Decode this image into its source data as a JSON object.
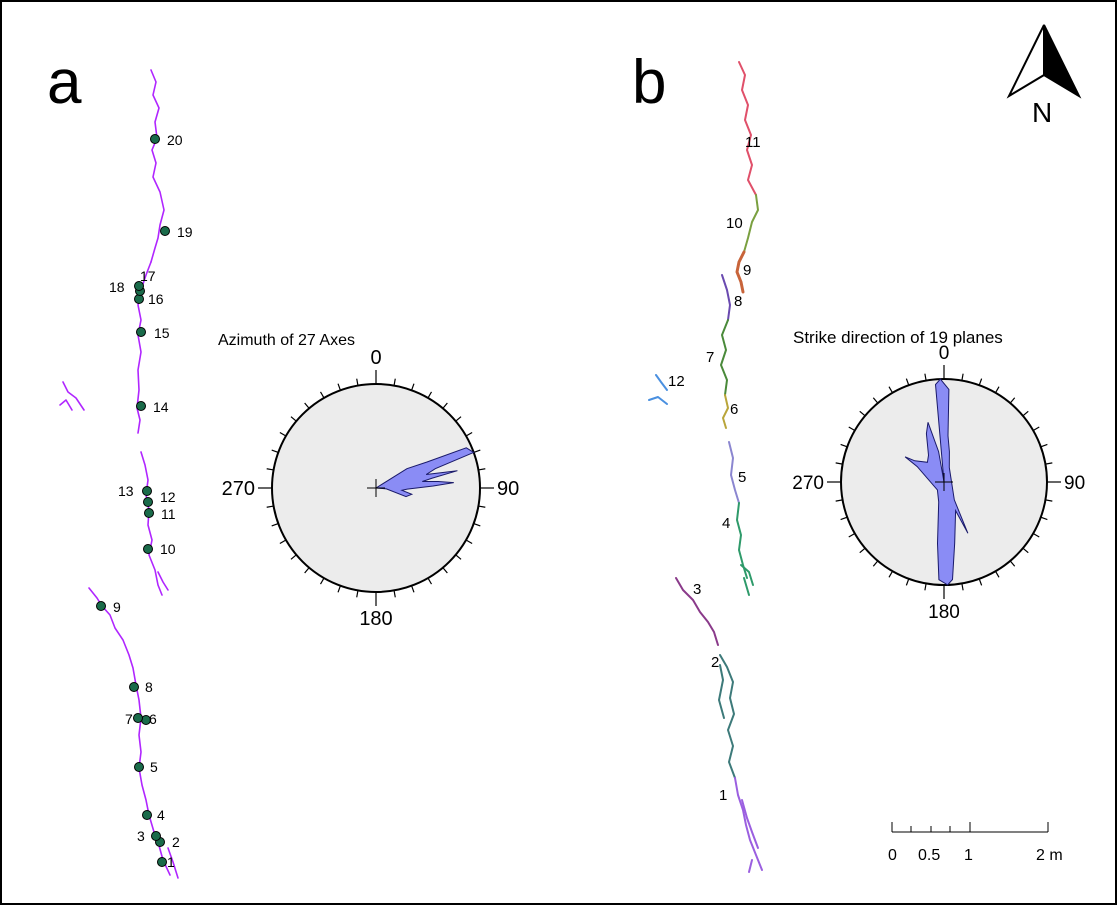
{
  "panels": {
    "a": {
      "letter": "a"
    },
    "b": {
      "letter": "b"
    }
  },
  "north_arrow": {
    "label": "N",
    "icon": "north-arrow-icon"
  },
  "rose_a": {
    "title": "Azimuth of 27 Axes",
    "labels": {
      "n": "0",
      "e": "90",
      "s": "180",
      "w": "270"
    }
  },
  "rose_b": {
    "title": "Strike direction of 19 planes",
    "labels": {
      "n": "0",
      "e": "90",
      "s": "180",
      "w": "270"
    }
  },
  "points_a": [
    "1",
    "2",
    "3",
    "4",
    "5",
    "6",
    "7",
    "8",
    "9",
    "10",
    "11",
    "12",
    "13",
    "14",
    "15",
    "16",
    "17",
    "18",
    "19",
    "20"
  ],
  "segments_b": [
    "1",
    "2",
    "3",
    "4",
    "5",
    "6",
    "7",
    "8",
    "9",
    "10",
    "11",
    "12"
  ],
  "scale_bar": {
    "labels": [
      "0",
      "0.5",
      "1",
      "2 m"
    ]
  },
  "colors": {
    "trace_a": "#b026ff",
    "point_fill": "#1a6b4a",
    "rose_fill": "#8a8cf5",
    "rose_bg": "#ececec",
    "seg_1": "#9b5fe0",
    "seg_2": "#3d7a7a",
    "seg_3": "#8a3a8a",
    "seg_4": "#2e9a6a",
    "seg_5": "#8b86d0",
    "seg_6": "#b9a53a",
    "seg_7": "#4a8a3a",
    "seg_8": "#6a4ab0",
    "seg_9": "#c8643a",
    "seg_10": "#7aa040",
    "seg_11": "#e0506a",
    "seg_12": "#4a90e0"
  }
}
